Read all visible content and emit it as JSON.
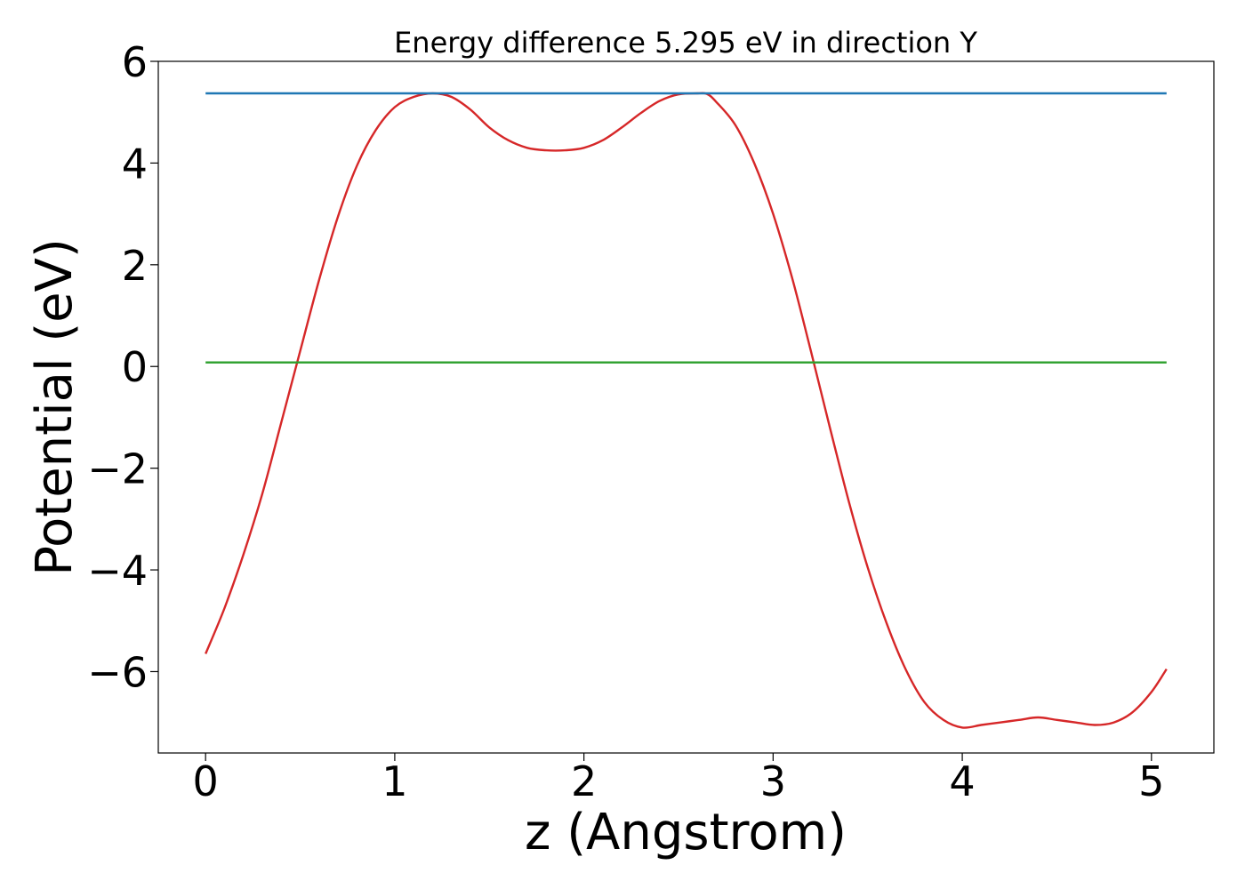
{
  "chart_data": {
    "type": "line",
    "title": "Energy difference 5.295 eV in direction Y",
    "xlabel": "z (Angstrom)",
    "ylabel": "Potential (eV)",
    "xlim": [
      -0.25,
      5.33
    ],
    "ylim": [
      -7.6,
      6.0
    ],
    "xticks": [
      0,
      1,
      2,
      3,
      4,
      5
    ],
    "xtick_labels": [
      "0",
      "1",
      "2",
      "3",
      "4",
      "5"
    ],
    "yticks": [
      -6,
      -4,
      -2,
      0,
      2,
      4,
      6
    ],
    "ytick_labels": [
      "−6",
      "−4",
      "−2",
      "0",
      "2",
      "4",
      "6"
    ],
    "grid": false,
    "series": [
      {
        "color": "#d62728",
        "x": [
          0.0,
          0.1,
          0.2,
          0.3,
          0.4,
          0.5,
          0.6,
          0.7,
          0.8,
          0.9,
          1.0,
          1.1,
          1.2,
          1.3,
          1.4,
          1.5,
          1.6,
          1.7,
          1.8,
          1.9,
          2.0,
          2.1,
          2.2,
          2.3,
          2.4,
          2.5,
          2.6,
          2.65,
          2.7,
          2.8,
          2.9,
          3.0,
          3.1,
          3.2,
          3.3,
          3.4,
          3.5,
          3.6,
          3.7,
          3.8,
          3.9,
          4.0,
          4.1,
          4.2,
          4.3,
          4.4,
          4.5,
          4.6,
          4.7,
          4.8,
          4.9,
          5.0,
          5.08
        ],
        "y": [
          -5.65,
          -4.75,
          -3.7,
          -2.5,
          -1.1,
          0.3,
          1.7,
          2.95,
          3.95,
          4.65,
          5.1,
          5.3,
          5.37,
          5.3,
          5.05,
          4.7,
          4.45,
          4.3,
          4.25,
          4.25,
          4.3,
          4.45,
          4.7,
          4.98,
          5.22,
          5.35,
          5.37,
          5.36,
          5.2,
          4.75,
          4.0,
          3.0,
          1.75,
          0.3,
          -1.2,
          -2.65,
          -3.95,
          -5.05,
          -5.95,
          -6.6,
          -6.95,
          -7.1,
          -7.05,
          -7.0,
          -6.95,
          -6.9,
          -6.95,
          -7.0,
          -7.05,
          -7.0,
          -6.8,
          -6.4,
          -5.95
        ]
      },
      {
        "color": "#1f77b4",
        "x": [
          0.0,
          5.08
        ],
        "y": [
          5.37,
          5.37
        ]
      },
      {
        "color": "#2ca02c",
        "x": [
          0.0,
          5.08
        ],
        "y": [
          0.08,
          0.08
        ]
      }
    ]
  }
}
